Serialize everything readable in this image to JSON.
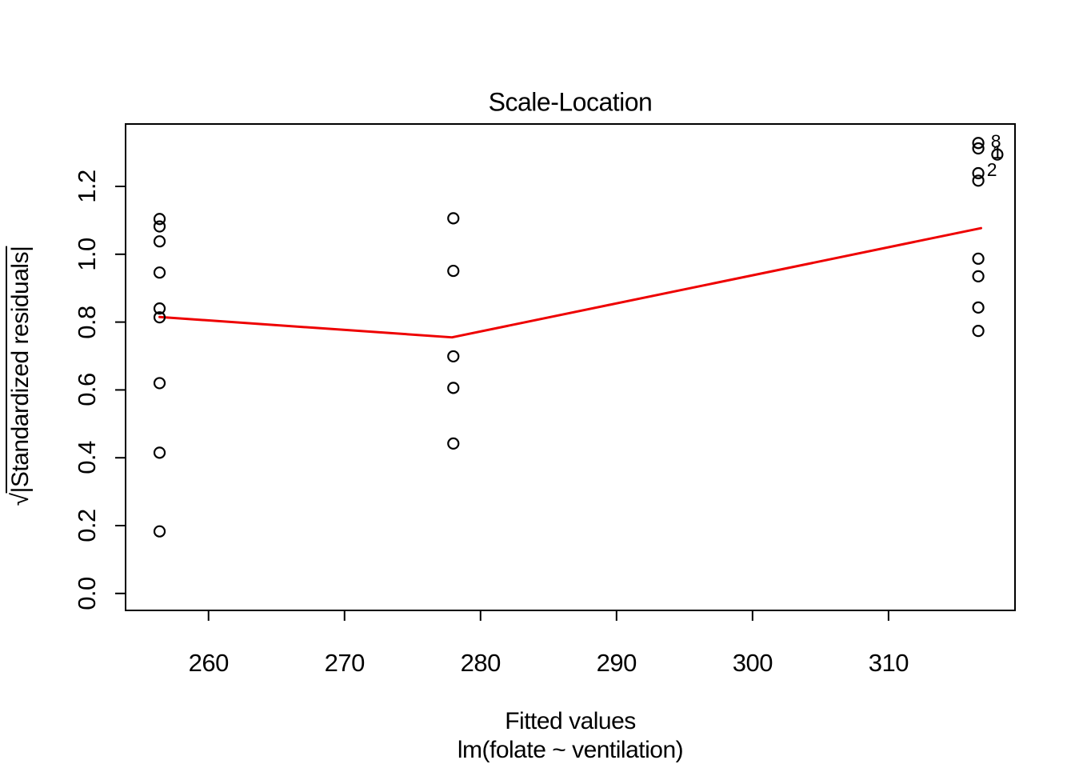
{
  "chart_data": {
    "type": "scatter",
    "title": "Scale-Location",
    "xlabel": "Fitted values",
    "subtitle": "lm(folate ~ ventilation)",
    "ylabel_sqrt_prefix": "√",
    "ylabel_overlined": "|Standardized residuals|",
    "xlim": [
      253.9,
      319.3
    ],
    "ylim": [
      -0.05,
      1.384
    ],
    "grid": false,
    "point_color": "#000000",
    "x_ticks": {
      "values": [
        260,
        270,
        280,
        290,
        300,
        310
      ],
      "labels": [
        "260",
        "270",
        "280",
        "290",
        "300",
        "310"
      ]
    },
    "y_ticks": {
      "values": [
        0.0,
        0.2,
        0.4,
        0.6,
        0.8,
        1.0,
        1.2
      ],
      "labels": [
        "0.0",
        "0.2",
        "0.4",
        "0.6",
        "0.8",
        "1.0",
        "1.2"
      ]
    },
    "groups": [
      {
        "fitted": 256.4,
        "sqrt_abs_std_resid": [
          1.104,
          1.082,
          1.038,
          0.946,
          0.84,
          0.814,
          0.62,
          0.415,
          0.183
        ]
      },
      {
        "fitted": 278.0,
        "sqrt_abs_std_resid": [
          1.106,
          0.951,
          0.699,
          0.606,
          0.442
        ]
      },
      {
        "fitted": 316.6,
        "sqrt_abs_std_resid": [
          1.328,
          1.312,
          1.239,
          1.217,
          0.987,
          0.935,
          0.843,
          0.774
        ]
      },
      {
        "fitted": 318.0,
        "sqrt_abs_std_resid": [
          1.294
        ]
      }
    ],
    "smoother": {
      "color": "#EE0000",
      "points": [
        [
          256.4,
          0.815
        ],
        [
          277.9,
          0.755
        ],
        [
          316.8,
          1.077
        ]
      ]
    },
    "point_labels": [
      {
        "label": "8",
        "x": 317.9,
        "y": 1.333
      },
      {
        "label": "1",
        "x": 318.0,
        "y": 1.302
      },
      {
        "label": "2",
        "x": 317.6,
        "y": 1.25
      }
    ]
  }
}
